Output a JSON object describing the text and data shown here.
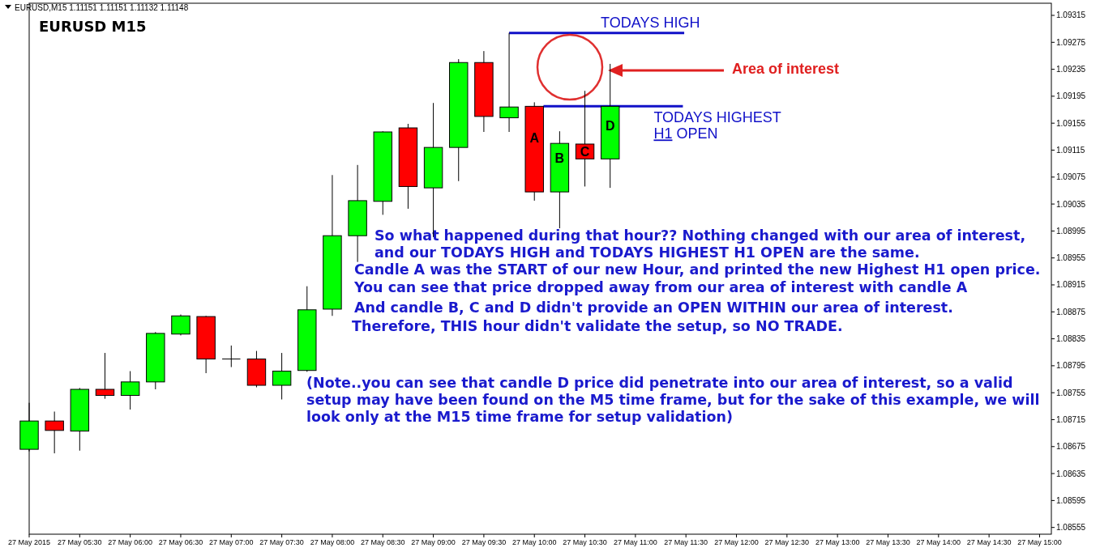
{
  "chart_data": {
    "type": "candlestick",
    "title": "EURUSD M15",
    "subtitle": "EURUSD,M15  1.11151 1.11151 1.11132 1.11148",
    "x": [
      "2015-05-27T05:00",
      "2015-05-27T05:15",
      "2015-05-27T05:30",
      "2015-05-27T05:45",
      "2015-05-27T06:00",
      "2015-05-27T06:15",
      "2015-05-27T06:30",
      "2015-05-27T06:45",
      "2015-05-27T07:00",
      "2015-05-27T07:15",
      "2015-05-27T07:30",
      "2015-05-27T07:45",
      "2015-05-27T08:00",
      "2015-05-27T08:15",
      "2015-05-27T08:30",
      "2015-05-27T08:45",
      "2015-05-27T09:00",
      "2015-05-27T09:15",
      "2015-05-27T09:30",
      "2015-05-27T09:45",
      "2015-05-27T10:00",
      "2015-05-27T10:15",
      "2015-05-27T10:30",
      "2015-05-27T10:45"
    ],
    "ohlc": [
      [
        1.08671,
        1.0874,
        1.08668,
        1.08713
      ],
      [
        1.08713,
        1.08727,
        1.08665,
        1.08699
      ],
      [
        1.08698,
        1.08762,
        1.08669,
        1.0876
      ],
      [
        1.0876,
        1.08814,
        1.08746,
        1.08751
      ],
      [
        1.08751,
        1.08787,
        1.0873,
        1.08771
      ],
      [
        1.08771,
        1.08845,
        1.0876,
        1.08843
      ],
      [
        1.08842,
        1.08871,
        1.0884,
        1.08869
      ],
      [
        1.08868,
        1.08869,
        1.08784,
        1.08805
      ],
      [
        1.08805,
        1.08825,
        1.08793,
        1.08805
      ],
      [
        1.08805,
        1.08817,
        1.08763,
        1.08766
      ],
      [
        1.08766,
        1.08814,
        1.08745,
        1.08787
      ],
      [
        1.08788,
        1.08913,
        1.08786,
        1.08878
      ],
      [
        1.08879,
        1.09078,
        1.08869,
        1.08988
      ],
      [
        1.08988,
        1.09093,
        1.08949,
        1.0904
      ],
      [
        1.09039,
        1.09143,
        1.09019,
        1.09142
      ],
      [
        1.09148,
        1.09154,
        1.09028,
        1.09061
      ],
      [
        1.09059,
        1.09185,
        1.08986,
        1.09119
      ],
      [
        1.09119,
        1.0925,
        1.09069,
        1.09245
      ],
      [
        1.09245,
        1.09262,
        1.09142,
        1.09165
      ],
      [
        1.09163,
        1.09289,
        1.09142,
        1.09179
      ],
      [
        1.0918,
        1.09186,
        1.0904,
        1.09053
      ],
      [
        1.09053,
        1.09143,
        1.08999,
        1.09125
      ],
      [
        1.09124,
        1.09203,
        1.09061,
        1.09102
      ],
      [
        1.09102,
        1.09243,
        1.09059,
        1.0918
      ]
    ],
    "colors": [
      "#00ff00",
      "#ff0000",
      "#00ff00",
      "#ff0000",
      "#00ff00",
      "#00ff00",
      "#00ff00",
      "#ff0000",
      "#000000",
      "#ff0000",
      "#00ff00",
      "#00ff00",
      "#00ff00",
      "#00ff00",
      "#00ff00",
      "#ff0000",
      "#00ff00",
      "#00ff00",
      "#ff0000",
      "#00ff00",
      "#ff0000",
      "#00ff00",
      "#ff0000",
      "#00ff00"
    ],
    "xlim": [
      "2015-05-27T05:00",
      "2015-05-27T15:07"
    ],
    "xticks": [
      {
        "value": "2015-05-27T05:00",
        "label": "27 May 2015"
      },
      {
        "value": "2015-05-27T05:30",
        "label": "27 May 05:30"
      },
      {
        "value": "2015-05-27T06:00",
        "label": "27 May 06:00"
      },
      {
        "value": "2015-05-27T06:30",
        "label": "27 May 06:30"
      },
      {
        "value": "2015-05-27T07:00",
        "label": "27 May 07:00"
      },
      {
        "value": "2015-05-27T07:30",
        "label": "27 May 07:30"
      },
      {
        "value": "2015-05-27T08:00",
        "label": "27 May 08:00"
      },
      {
        "value": "2015-05-27T08:30",
        "label": "27 May 08:30"
      },
      {
        "value": "2015-05-27T09:00",
        "label": "27 May 09:00"
      },
      {
        "value": "2015-05-27T09:30",
        "label": "27 May 09:30"
      },
      {
        "value": "2015-05-27T10:00",
        "label": "27 May 10:00"
      },
      {
        "value": "2015-05-27T10:30",
        "label": "27 May 10:30"
      },
      {
        "value": "2015-05-27T11:00",
        "label": "27 May 11:00"
      },
      {
        "value": "2015-05-27T11:30",
        "label": "27 May 11:30"
      },
      {
        "value": "2015-05-27T12:00",
        "label": "27 May 12:00"
      },
      {
        "value": "2015-05-27T12:30",
        "label": "27 May 12:30"
      },
      {
        "value": "2015-05-27T13:00",
        "label": "27 May 13:00"
      },
      {
        "value": "2015-05-27T13:30",
        "label": "27 May 13:30"
      },
      {
        "value": "2015-05-27T14:00",
        "label": "27 May 14:00"
      },
      {
        "value": "2015-05-27T14:30",
        "label": "27 May 14:30"
      },
      {
        "value": "2015-05-27T15:00",
        "label": "27 May 15:00"
      }
    ],
    "ylim": [
      1.08545,
      1.09333
    ],
    "yticks": [
      1.09315,
      1.09275,
      1.09235,
      1.09195,
      1.09155,
      1.09115,
      1.09075,
      1.09035,
      1.08995,
      1.08955,
      1.08915,
      1.08875,
      1.08835,
      1.08795,
      1.08755,
      1.08715,
      1.08675,
      1.08635,
      1.08595,
      1.08555
    ],
    "ref_lines": [
      {
        "axis": "y",
        "value": 1.09289,
        "label": "TODAYS HIGH",
        "color": "#1010c8"
      },
      {
        "axis": "y",
        "value": 1.0918,
        "label": "TODAYS HIGHEST H1 OPEN",
        "color": "#1010c8"
      }
    ],
    "annotations": [
      "So what happened during that hour?? Nothing changed with our area of interest, and our TODAYS HIGH and TODAYS HIGHEST H1 OPEN are the same.",
      "Candle A was the START of our new Hour, and printed the new Highest H1 open price.",
      "You can see that price dropped away from our area of interest with candle A",
      "And candle B, C and D didn't provide an OPEN WITHIN our area of interest.",
      "Therefore, THIS hour didn't validate the setup, so NO TRADE.",
      "(Note..you can see that candle D price did penetrate into our area of interest, so a valid setup may have been found on the M5 time frame, but for the sake of this example, we will look only at the M15 time frame for setup validation)",
      "Area of interest",
      {
        "text": "A",
        "x": "2015-05-27T10:00",
        "y": 1.09133
      },
      {
        "text": "B",
        "x": "2015-05-27T10:15",
        "y": 1.09103
      },
      {
        "text": "C",
        "x": "2015-05-27T10:30",
        "y": 1.09113
      },
      {
        "text": "D",
        "x": "2015-05-27T10:45",
        "y": 1.09151
      }
    ]
  }
}
